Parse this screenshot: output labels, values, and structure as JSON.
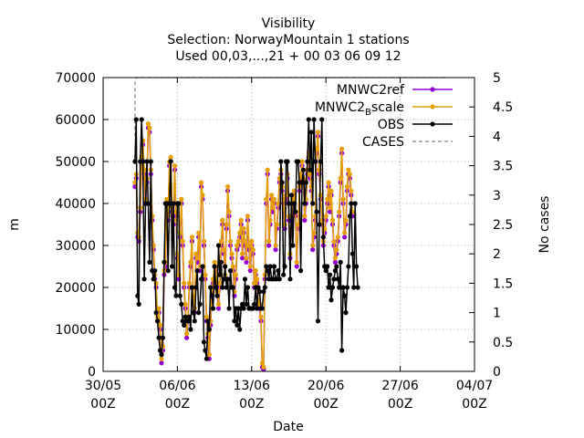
{
  "chart_data": {
    "type": "line",
    "title_lines": [
      "Visibility",
      "Selection: NorwayMountain      1 stations",
      "Used 00,03,...,21 + 00 03 06 09 12"
    ],
    "xlabel": "Date",
    "ylabel": "m",
    "y2label": "No cases",
    "xlim": [
      "2021-05-30 00:00",
      "2021-07-04 00:00"
    ],
    "ylim": [
      0,
      70000
    ],
    "y2lim": [
      0,
      5
    ],
    "x_ticks": [
      {
        "label": "30/05",
        "sub": "00Z",
        "t": "2021-05-30 00:00"
      },
      {
        "label": "06/06",
        "sub": "00Z",
        "t": "2021-06-06 00:00"
      },
      {
        "label": "13/06",
        "sub": "00Z",
        "t": "2021-06-13 00:00"
      },
      {
        "label": "20/06",
        "sub": "00Z",
        "t": "2021-06-20 00:00"
      },
      {
        "label": "27/06",
        "sub": "00Z",
        "t": "2021-06-27 00:00"
      },
      {
        "label": "04/07",
        "sub": "00Z",
        "t": "2021-07-04 00:00"
      }
    ],
    "y_ticks": [
      "0",
      "10000",
      "20000",
      "30000",
      "40000",
      "50000",
      "60000",
      "70000"
    ],
    "y2_ticks": [
      "0",
      "0.5",
      "1",
      "1.5",
      "2",
      "2.5",
      "3",
      "3.5",
      "4",
      "4.5",
      "5"
    ],
    "grid": true,
    "legend_position": "top-right",
    "series": [
      {
        "name": "MNWC2_ref",
        "legend_main": "MNWC2",
        "legend_sub": "",
        "legend_tail": "ref",
        "color": "#9400d3",
        "marker": "circle",
        "start": "2021-06-02 00:00",
        "step_hours": 3,
        "values": [
          44000,
          46000,
          32000,
          31000,
          38000,
          50000,
          54000,
          47000,
          40000,
          45000,
          58000,
          57000,
          47000,
          36000,
          29000,
          22000,
          20000,
          12000,
          14000,
          10000,
          2000,
          5000,
          23000,
          25000,
          40000,
          36000,
          49000,
          50000,
          38000,
          35000,
          48000,
          37000,
          27000,
          22000,
          32000,
          40000,
          30000,
          20000,
          15000,
          8000,
          12000,
          20000,
          25000,
          31000,
          17000,
          14000,
          27000,
          26000,
          32000,
          24000,
          44000,
          41000,
          30000,
          22000,
          12000,
          8000,
          3000,
          11000,
          17000,
          21000,
          25000,
          24000,
          18000,
          15000,
          20000,
          30000,
          35000,
          28000,
          22000,
          34000,
          43000,
          37000,
          30000,
          27000,
          24000,
          18000,
          22000,
          29000,
          30000,
          32000,
          35000,
          27000,
          33000,
          30000,
          26000,
          36000,
          29000,
          24000,
          30000,
          28000,
          20000,
          23000,
          21000,
          16000,
          15000,
          12000,
          1000,
          500,
          22000,
          40000,
          47000,
          30000,
          35000,
          41000,
          38000,
          40000,
          29000,
          34000,
          39000,
          45000,
          47000,
          43000,
          40000,
          34000,
          41000,
          46000,
          36000,
          27000,
          33000,
          40000,
          42000,
          37000,
          25000,
          34000,
          43000,
          46000,
          49000,
          45000,
          36000,
          40000,
          47000,
          51000,
          46000,
          43000,
          29000,
          32000,
          36000,
          52000,
          56000,
          47000,
          41000,
          35000,
          30000,
          33000,
          36000,
          40000,
          44000,
          38000,
          42000,
          35000,
          30000,
          26000,
          28000,
          31000,
          37000,
          45000,
          52000,
          40000,
          32000,
          35000,
          43000,
          47000,
          46000,
          42000,
          37000
        ]
      },
      {
        "name": "MNWC2_Bscale",
        "legend_main": "MNWC2",
        "legend_sub": "B",
        "legend_tail": "scale",
        "color": "#e69f00",
        "marker": "circle",
        "start": "2021-06-02 00:00",
        "step_hours": 3,
        "values": [
          45000,
          47000,
          33000,
          32000,
          39000,
          51000,
          55000,
          48000,
          41000,
          46000,
          59000,
          58000,
          48000,
          37000,
          30000,
          23000,
          21000,
          13000,
          15000,
          11000,
          3000,
          6000,
          24000,
          26000,
          41000,
          37000,
          50000,
          51000,
          39000,
          36000,
          49000,
          38000,
          28000,
          23000,
          33000,
          41000,
          31000,
          21000,
          16000,
          9000,
          13000,
          21000,
          26000,
          32000,
          18000,
          15000,
          28000,
          27000,
          33000,
          25000,
          45000,
          42000,
          31000,
          23000,
          13000,
          9000,
          4000,
          12000,
          18000,
          22000,
          26000,
          25000,
          19000,
          16000,
          21000,
          31000,
          36000,
          29000,
          23000,
          35000,
          44000,
          38000,
          31000,
          28000,
          25000,
          19000,
          23000,
          30000,
          31000,
          33000,
          36000,
          28000,
          34000,
          31000,
          27000,
          37000,
          30000,
          25000,
          31000,
          29000,
          21000,
          24000,
          22000,
          17000,
          16000,
          13000,
          2000,
          1000,
          23000,
          41000,
          48000,
          31000,
          36000,
          42000,
          39000,
          41000,
          30000,
          35000,
          40000,
          46000,
          48000,
          44000,
          41000,
          35000,
          42000,
          47000,
          37000,
          28000,
          34000,
          41000,
          43000,
          38000,
          26000,
          35000,
          44000,
          47000,
          50000,
          46000,
          37000,
          41000,
          48000,
          52000,
          47000,
          44000,
          30000,
          33000,
          37000,
          53000,
          57000,
          48000,
          42000,
          36000,
          31000,
          34000,
          37000,
          41000,
          45000,
          39000,
          43000,
          36000,
          31000,
          27000,
          29000,
          32000,
          38000,
          46000,
          53000,
          41000,
          33000,
          36000,
          44000,
          48000,
          47000,
          43000,
          38000
        ]
      },
      {
        "name": "OBS",
        "legend_main": "OBS",
        "legend_sub": "",
        "legend_tail": "",
        "color": "#000000",
        "marker": "circle",
        "start": "2021-06-02 00:00",
        "step_hours": 3,
        "values": [
          50000,
          60000,
          18000,
          16000,
          50000,
          60000,
          50000,
          22000,
          40000,
          50000,
          40000,
          26000,
          50000,
          24000,
          22000,
          24000,
          14000,
          12000,
          8000,
          5000,
          4000,
          8000,
          26000,
          40000,
          40000,
          24000,
          40000,
          50000,
          25000,
          40000,
          20000,
          18000,
          40000,
          40000,
          18000,
          16000,
          12000,
          11000,
          13000,
          12000,
          12000,
          13000,
          10000,
          20000,
          14000,
          12000,
          20000,
          24000,
          14000,
          16000,
          22000,
          25000,
          7000,
          5000,
          3000,
          12000,
          10000,
          20000,
          18000,
          15000,
          25000,
          20000,
          18000,
          30000,
          23000,
          26000,
          20000,
          22000,
          25000,
          20000,
          22000,
          15000,
          24000,
          20000,
          20000,
          12000,
          15000,
          11000,
          15000,
          10000,
          15000,
          16000,
          15000,
          22000,
          16000,
          20000,
          15000,
          15000,
          15000,
          15000,
          16000,
          20000,
          15000,
          20000,
          19000,
          15000,
          15000,
          19000,
          20000,
          25000,
          24000,
          22000,
          25000,
          22000,
          22000,
          25000,
          22000,
          22000,
          24000,
          22000,
          50000,
          45000,
          23000,
          25000,
          50000,
          50000,
          40000,
          22000,
          42000,
          30000,
          40000,
          38000,
          50000,
          50000,
          45000,
          24000,
          45000,
          48000,
          40000,
          45000,
          50000,
          60000,
          48000,
          57000,
          40000,
          60000,
          50000,
          38000,
          12000,
          35000,
          50000,
          60000,
          32000,
          25000,
          24000,
          25000,
          20000,
          23000,
          17000,
          20000,
          22000,
          24000,
          25000,
          22000,
          20000,
          26000,
          5000,
          20000,
          18000,
          14000,
          20000,
          25000,
          37000,
          40000,
          28000,
          20000,
          40000,
          25000,
          20000
        ]
      },
      {
        "name": "CASES",
        "legend_main": "CASES",
        "legend_sub": "",
        "legend_tail": "",
        "color": "#808080",
        "dashed": true,
        "axis": "y2",
        "x": [
          "2021-06-02 00:00",
          "2021-06-02 00:00",
          "2021-06-02 03:00",
          "2021-07-01 12:00"
        ],
        "values": [
          4,
          4.9,
          5,
          5
        ]
      }
    ]
  }
}
